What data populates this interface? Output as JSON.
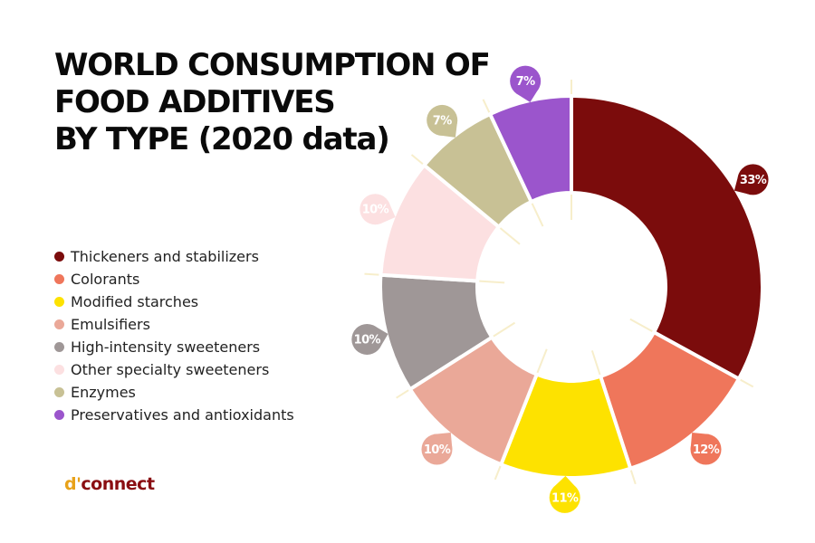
{
  "title": {
    "line1": "WORLD CONSUMPTION OF",
    "line2": "FOOD ADDITIVES",
    "line3": "BY TYPE (2020 data)"
  },
  "logo": {
    "part1": "d'",
    "part2": "connect"
  },
  "chart_data": {
    "type": "pie",
    "variant": "donut",
    "title": "WORLD CONSUMPTION OF FOOD ADDITIVES BY TYPE (2020 data)",
    "legend_position": "left",
    "unit": "%",
    "slices": [
      {
        "label": "Thickeners and stabilizers",
        "value": 33,
        "display": "33%",
        "color": "#7b0c0c"
      },
      {
        "label": "Colorants",
        "value": 12,
        "display": "12%",
        "color": "#ef765b"
      },
      {
        "label": "Modified starches",
        "value": 11,
        "display": "11%",
        "color": "#fde200"
      },
      {
        "label": "Emulsifiers",
        "value": 10,
        "display": "10%",
        "color": "#eaa898"
      },
      {
        "label": "High-intensity sweeteners",
        "value": 10,
        "display": "10%",
        "color": "#9f9797"
      },
      {
        "label": "Other specialty sweeteners",
        "value": 10,
        "display": "10%",
        "color": "#fce0e1"
      },
      {
        "label": "Enzymes",
        "value": 7,
        "display": "7%",
        "color": "#c8c195"
      },
      {
        "label": "Preservatives and antioxidants",
        "value": 7,
        "display": "7%",
        "color": "#9b55cc"
      }
    ]
  }
}
